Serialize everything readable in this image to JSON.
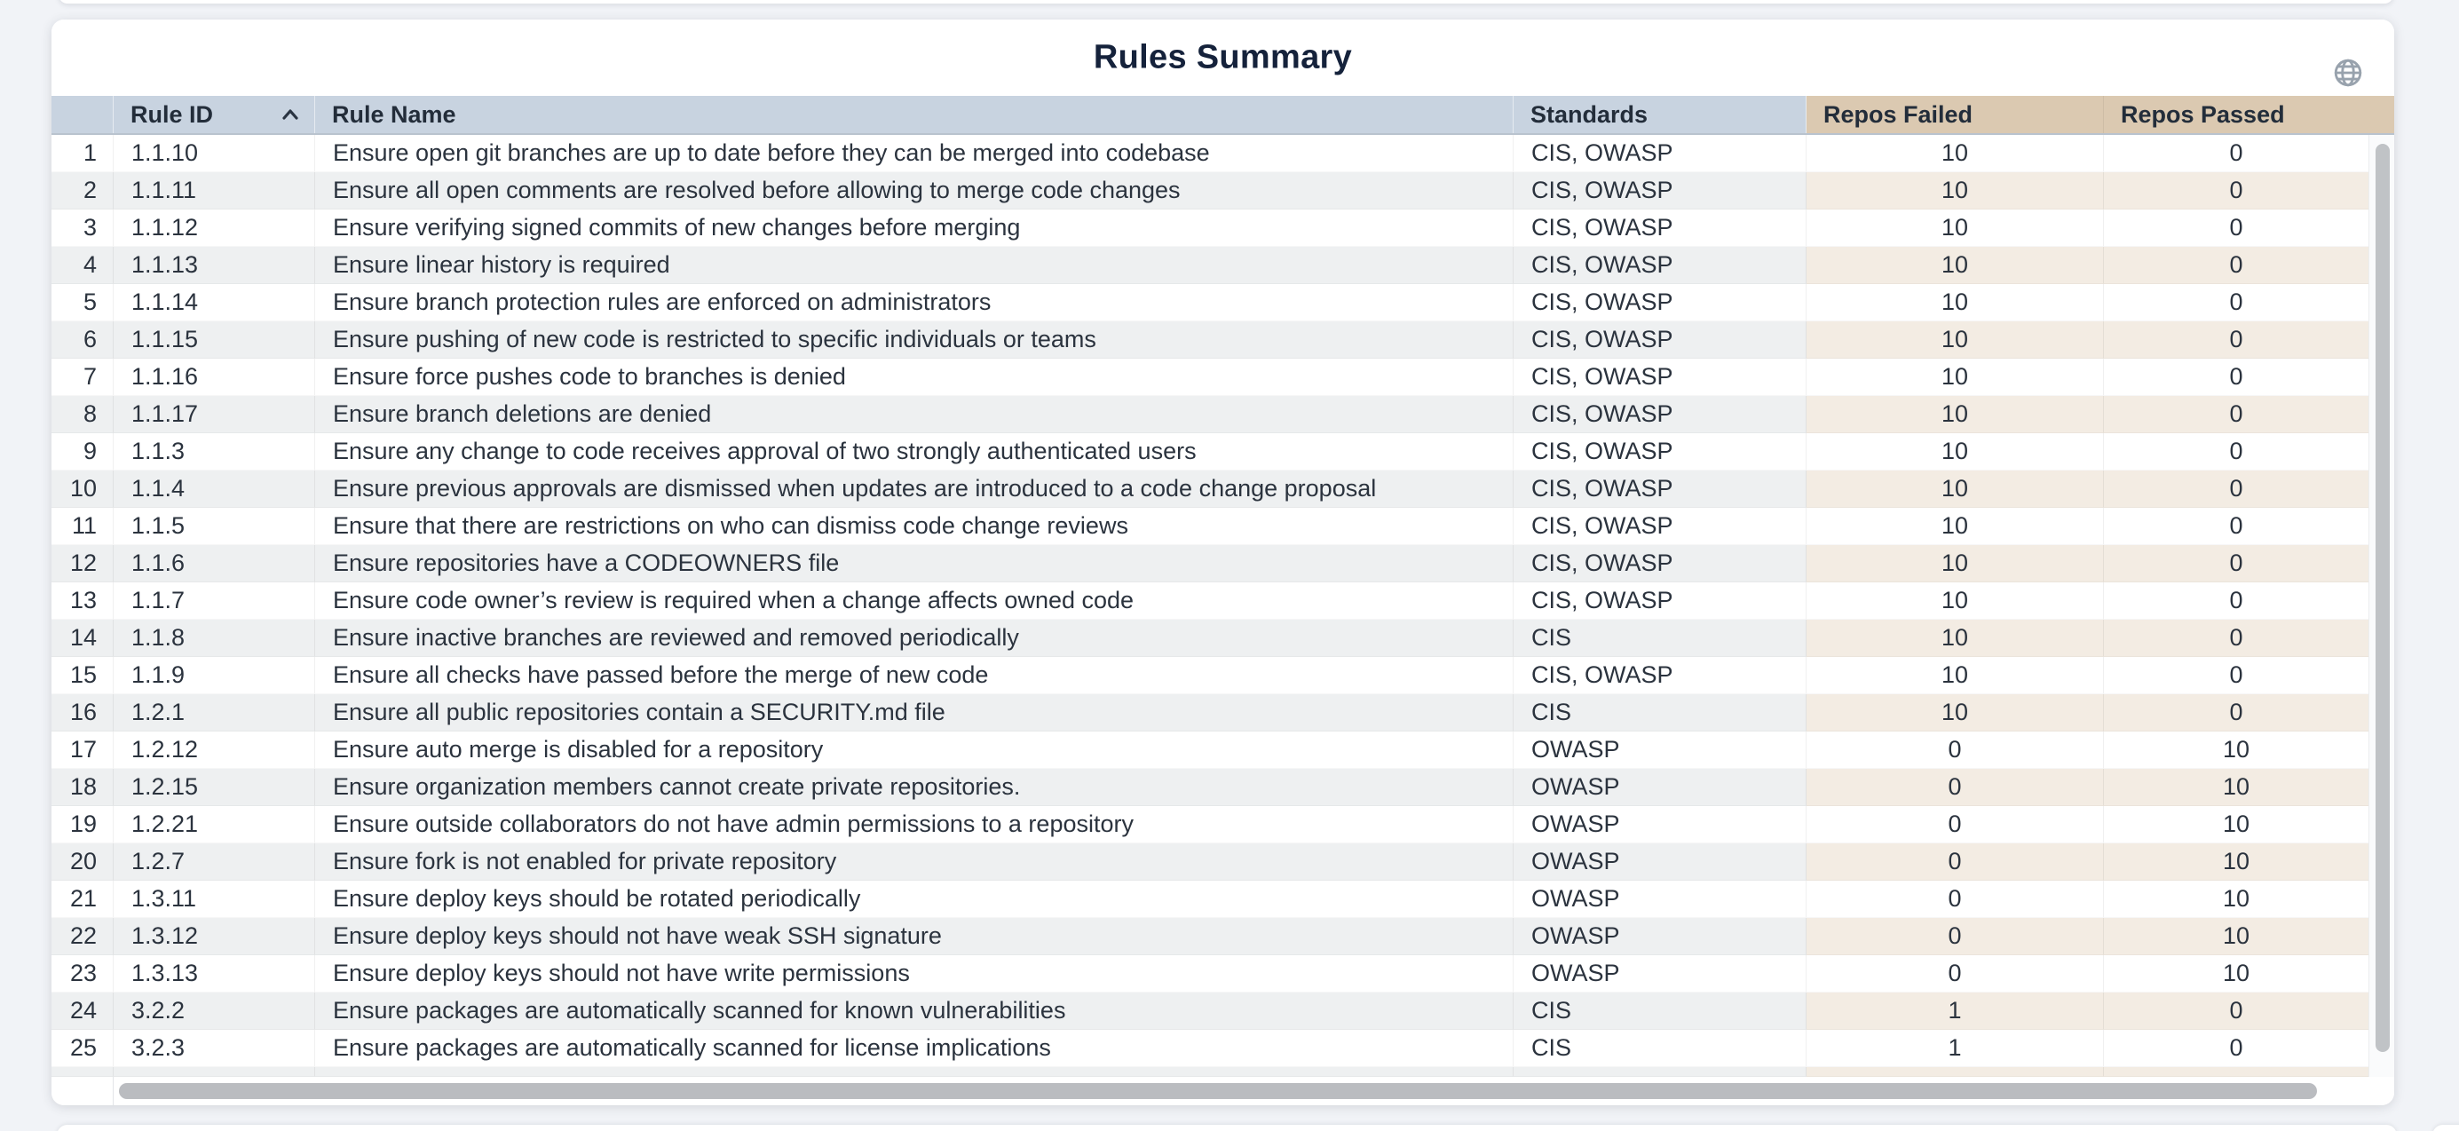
{
  "title": "Rules Summary",
  "toolbar": {
    "globe_icon": "globe"
  },
  "table": {
    "columns": [
      {
        "key": "num",
        "label": ""
      },
      {
        "key": "rule_id",
        "label": "Rule ID",
        "sort": "asc"
      },
      {
        "key": "rule_name",
        "label": "Rule Name"
      },
      {
        "key": "standards",
        "label": "Standards"
      },
      {
        "key": "repos_failed",
        "label": "Repos Failed"
      },
      {
        "key": "repos_passed",
        "label": "Repos Passed"
      }
    ],
    "rows": [
      {
        "num": "1",
        "rule_id": "1.1.10",
        "rule_name": "Ensure open git branches are up to date before they can be merged into codebase",
        "standards": "CIS, OWASP",
        "repos_failed": "10",
        "repos_passed": "0"
      },
      {
        "num": "2",
        "rule_id": "1.1.11",
        "rule_name": "Ensure all open comments are resolved before allowing to merge code changes",
        "standards": "CIS, OWASP",
        "repos_failed": "10",
        "repos_passed": "0"
      },
      {
        "num": "3",
        "rule_id": "1.1.12",
        "rule_name": "Ensure verifying signed commits of new changes before merging",
        "standards": "CIS, OWASP",
        "repos_failed": "10",
        "repos_passed": "0"
      },
      {
        "num": "4",
        "rule_id": "1.1.13",
        "rule_name": "Ensure linear history is required",
        "standards": "CIS, OWASP",
        "repos_failed": "10",
        "repos_passed": "0"
      },
      {
        "num": "5",
        "rule_id": "1.1.14",
        "rule_name": "Ensure branch protection rules are enforced on administrators",
        "standards": "CIS, OWASP",
        "repos_failed": "10",
        "repos_passed": "0"
      },
      {
        "num": "6",
        "rule_id": "1.1.15",
        "rule_name": "Ensure pushing of new code is restricted to specific individuals or teams",
        "standards": "CIS, OWASP",
        "repos_failed": "10",
        "repos_passed": "0"
      },
      {
        "num": "7",
        "rule_id": "1.1.16",
        "rule_name": "Ensure force pushes code to branches is denied",
        "standards": "CIS, OWASP",
        "repos_failed": "10",
        "repos_passed": "0"
      },
      {
        "num": "8",
        "rule_id": "1.1.17",
        "rule_name": "Ensure branch deletions are denied",
        "standards": "CIS, OWASP",
        "repos_failed": "10",
        "repos_passed": "0"
      },
      {
        "num": "9",
        "rule_id": "1.1.3",
        "rule_name": "Ensure any change to code receives approval of two strongly authenticated users",
        "standards": "CIS, OWASP",
        "repos_failed": "10",
        "repos_passed": "0"
      },
      {
        "num": "10",
        "rule_id": "1.1.4",
        "rule_name": "Ensure previous approvals are dismissed when updates are introduced to a code change proposal",
        "standards": "CIS, OWASP",
        "repos_failed": "10",
        "repos_passed": "0"
      },
      {
        "num": "11",
        "rule_id": "1.1.5",
        "rule_name": "Ensure that there are restrictions on who can dismiss code change reviews",
        "standards": "CIS, OWASP",
        "repos_failed": "10",
        "repos_passed": "0"
      },
      {
        "num": "12",
        "rule_id": "1.1.6",
        "rule_name": "Ensure repositories have a CODEOWNERS file",
        "standards": "CIS, OWASP",
        "repos_failed": "10",
        "repos_passed": "0"
      },
      {
        "num": "13",
        "rule_id": "1.1.7",
        "rule_name": "Ensure code owner’s review is required when a change affects owned code",
        "standards": "CIS, OWASP",
        "repos_failed": "10",
        "repos_passed": "0"
      },
      {
        "num": "14",
        "rule_id": "1.1.8",
        "rule_name": "Ensure inactive branches are reviewed and removed periodically",
        "standards": "CIS",
        "repos_failed": "10",
        "repos_passed": "0"
      },
      {
        "num": "15",
        "rule_id": "1.1.9",
        "rule_name": "Ensure all checks have passed before the merge of new code",
        "standards": "CIS, OWASP",
        "repos_failed": "10",
        "repos_passed": "0"
      },
      {
        "num": "16",
        "rule_id": "1.2.1",
        "rule_name": "Ensure all public repositories contain a SECURITY.md file",
        "standards": "CIS",
        "repos_failed": "10",
        "repos_passed": "0"
      },
      {
        "num": "17",
        "rule_id": "1.2.12",
        "rule_name": "Ensure auto merge is disabled for a repository",
        "standards": "OWASP",
        "repos_failed": "0",
        "repos_passed": "10"
      },
      {
        "num": "18",
        "rule_id": "1.2.15",
        "rule_name": "Ensure organization members cannot create private repositories.",
        "standards": "OWASP",
        "repos_failed": "0",
        "repos_passed": "10"
      },
      {
        "num": "19",
        "rule_id": "1.2.21",
        "rule_name": "Ensure outside collaborators do not have admin permissions to a repository",
        "standards": "OWASP",
        "repos_failed": "0",
        "repos_passed": "10"
      },
      {
        "num": "20",
        "rule_id": "1.2.7",
        "rule_name": "Ensure fork is not enabled for private repository",
        "standards": "OWASP",
        "repos_failed": "0",
        "repos_passed": "10"
      },
      {
        "num": "21",
        "rule_id": "1.3.11",
        "rule_name": "Ensure deploy keys should be rotated periodically",
        "standards": "OWASP",
        "repos_failed": "0",
        "repos_passed": "10"
      },
      {
        "num": "22",
        "rule_id": "1.3.12",
        "rule_name": "Ensure deploy keys should not have weak SSH signature",
        "standards": "OWASP",
        "repos_failed": "0",
        "repos_passed": "10"
      },
      {
        "num": "23",
        "rule_id": "1.3.13",
        "rule_name": "Ensure deploy keys should not have write permissions",
        "standards": "OWASP",
        "repos_failed": "0",
        "repos_passed": "10"
      },
      {
        "num": "24",
        "rule_id": "3.2.2",
        "rule_name": "Ensure packages are automatically scanned for known vulnerabilities",
        "standards": "CIS",
        "repos_failed": "1",
        "repos_passed": "0"
      },
      {
        "num": "25",
        "rule_id": "3.2.3",
        "rule_name": "Ensure packages are automatically scanned for license implications",
        "standards": "CIS",
        "repos_failed": "1",
        "repos_passed": "0"
      }
    ]
  },
  "colors": {
    "page_bg": "#f1f3f7",
    "header_blue": "#c8d3e0",
    "header_tan": "#dbc9b1",
    "header_text": "#232d3a",
    "title_color": "#15223b",
    "cell_text": "#2b333e",
    "stripe_gray": "#eef0f1",
    "stripe_tan": "#f3ece3",
    "globe_icon": "#98a2ad",
    "scrollbar_thumb": "#bdc0c3"
  }
}
